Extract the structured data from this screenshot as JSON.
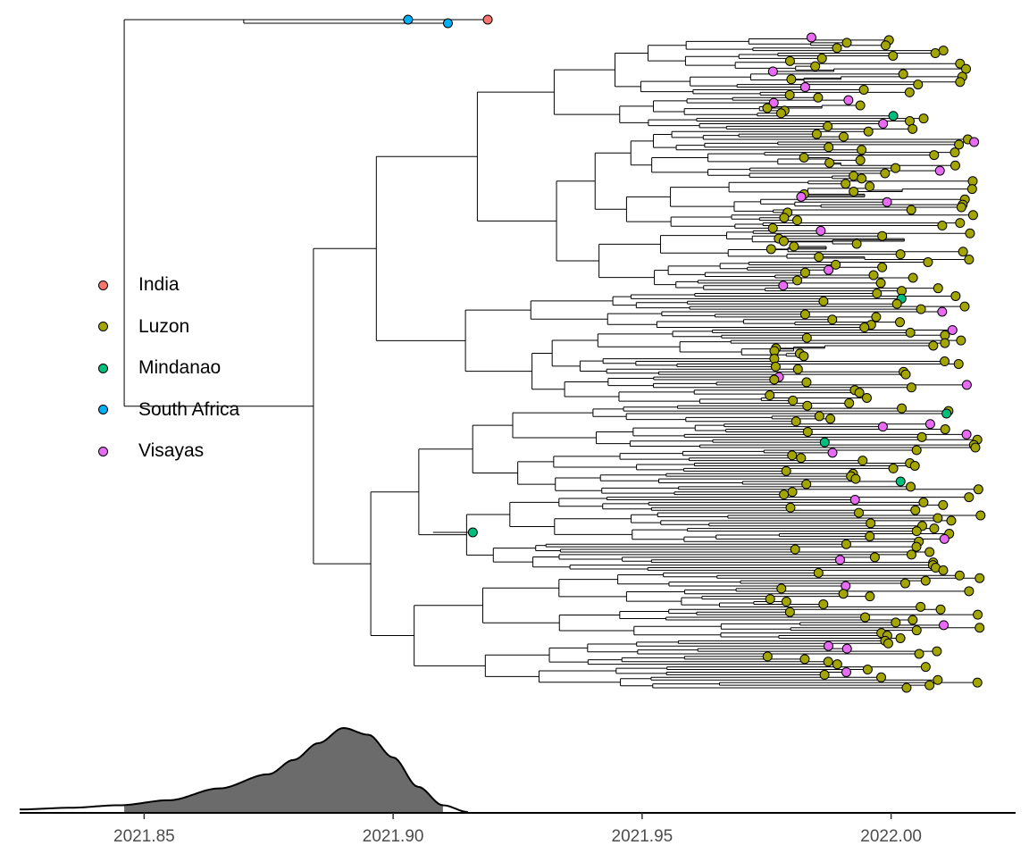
{
  "chart_data": {
    "type": "phylogenetic-tree-with-density",
    "title": "",
    "xlabel": "",
    "ylabel": "",
    "x_axis": {
      "range": [
        2021.825,
        2022.025
      ],
      "ticks": [
        2021.85,
        2021.9,
        2021.95,
        2022.0
      ],
      "tick_labels": [
        "2021.85",
        "2021.90",
        "2021.95",
        "2022.00"
      ]
    },
    "legend": {
      "position": "left-middle",
      "entries": [
        {
          "name": "India",
          "color": "#F8766D"
        },
        {
          "name": "Luzon",
          "color": "#A3A500"
        },
        {
          "name": "Mindanao",
          "color": "#00BF7D"
        },
        {
          "name": "South Africa",
          "color": "#00B0F6"
        },
        {
          "name": "Visayas",
          "color": "#E76BF3"
        }
      ]
    },
    "root_date": 2021.846,
    "root_density": {
      "x": [
        2021.825,
        2021.835,
        2021.845,
        2021.855,
        2021.865,
        2021.875,
        2021.88,
        2021.885,
        2021.89,
        2021.895,
        2021.9,
        2021.905,
        2021.91,
        2021.915
      ],
      "y": [
        0.03,
        0.05,
        0.08,
        0.14,
        0.28,
        0.45,
        0.62,
        0.82,
        1.0,
        0.92,
        0.65,
        0.3,
        0.08,
        0.0
      ],
      "shaded_interval": [
        2021.846,
        2021.91
      ]
    },
    "tip_dates": {
      "min": 2021.975,
      "max": 2022.02
    },
    "basal_tips": [
      {
        "location": "South Africa",
        "date": 2021.903
      },
      {
        "location": "South Africa",
        "date": 2021.911
      },
      {
        "location": "India",
        "date": 2021.919
      },
      {
        "location": "Mindanao",
        "date": 2021.916
      }
    ]
  }
}
